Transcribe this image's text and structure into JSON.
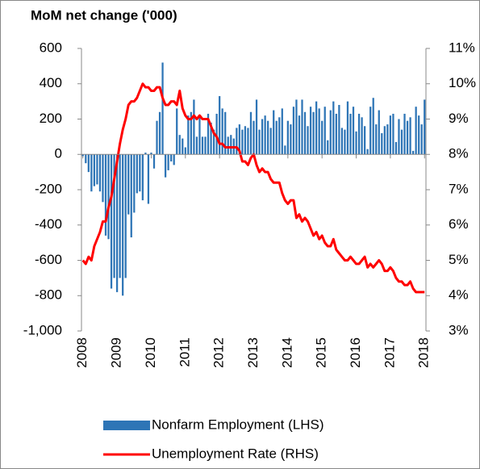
{
  "chart_data": {
    "type": "bar",
    "title": "MoM net change ('000)",
    "categories": [
      "2008",
      null,
      null,
      null,
      null,
      null,
      null,
      null,
      null,
      null,
      null,
      null,
      "2009",
      null,
      null,
      null,
      null,
      null,
      null,
      null,
      null,
      null,
      null,
      null,
      "2010",
      null,
      null,
      null,
      null,
      null,
      null,
      null,
      null,
      null,
      null,
      null,
      "2011",
      null,
      null,
      null,
      null,
      null,
      null,
      null,
      null,
      null,
      null,
      null,
      "2012",
      null,
      null,
      null,
      null,
      null,
      null,
      null,
      null,
      null,
      null,
      null,
      "2013",
      null,
      null,
      null,
      null,
      null,
      null,
      null,
      null,
      null,
      null,
      null,
      "2014",
      null,
      null,
      null,
      null,
      null,
      null,
      null,
      null,
      null,
      null,
      null,
      "2015",
      null,
      null,
      null,
      null,
      null,
      null,
      null,
      null,
      null,
      null,
      null,
      "2016",
      null,
      null,
      null,
      null,
      null,
      null,
      null,
      null,
      null,
      null,
      null,
      "2017",
      null,
      null,
      null,
      null,
      null,
      null,
      null,
      null,
      null,
      null,
      null,
      "2018"
    ],
    "series": [
      {
        "name": "Nonfarm Employment (LHS)",
        "color": "#2e75b6",
        "type": "bar",
        "values": [
          -10,
          -50,
          -100,
          -210,
          -180,
          -170,
          -210,
          -270,
          -460,
          -480,
          -760,
          -700,
          -780,
          -700,
          -800,
          -700,
          -340,
          -470,
          -330,
          -220,
          -210,
          -260,
          10,
          -280,
          10,
          -80,
          190,
          240,
          520,
          -130,
          -90,
          -40,
          -60,
          260,
          110,
          90,
          40,
          220,
          240,
          310,
          100,
          210,
          100,
          100,
          230,
          180,
          140,
          230,
          330,
          260,
          240,
          100,
          110,
          90,
          150,
          170,
          140,
          160,
          150,
          240,
          190,
          310,
          140,
          200,
          220,
          190,
          150,
          250,
          190,
          210,
          260,
          50,
          190,
          170,
          270,
          310,
          220,
          310,
          240,
          160,
          270,
          240,
          300,
          260,
          190,
          270,
          80,
          250,
          300,
          230,
          280,
          150,
          140,
          300,
          230,
          270,
          130,
          230,
          210,
          160,
          30,
          270,
          320,
          170,
          250,
          120,
          160,
          170,
          220,
          230,
          70,
          200,
          140,
          230,
          190,
          210,
          20,
          270,
          220,
          170,
          310
        ]
      },
      {
        "name": "Unemployment Rate (RHS)",
        "color": "#ff0000",
        "type": "line",
        "axis": "y2",
        "values": [
          5.0,
          4.9,
          5.1,
          5.0,
          5.4,
          5.6,
          5.8,
          6.1,
          6.1,
          6.5,
          6.8,
          7.3,
          7.8,
          8.3,
          8.7,
          9.0,
          9.4,
          9.5,
          9.5,
          9.6,
          9.8,
          10.0,
          9.9,
          9.9,
          9.8,
          9.8,
          9.9,
          9.9,
          9.6,
          9.4,
          9.4,
          9.5,
          9.5,
          9.4,
          9.8,
          9.3,
          9.1,
          9.0,
          9.0,
          9.1,
          9.0,
          9.1,
          9.0,
          9.0,
          9.0,
          8.8,
          8.6,
          8.5,
          8.3,
          8.3,
          8.2,
          8.2,
          8.2,
          8.2,
          8.2,
          8.1,
          7.8,
          7.8,
          7.7,
          7.9,
          8.0,
          7.7,
          7.5,
          7.6,
          7.5,
          7.5,
          7.3,
          7.2,
          7.2,
          7.2,
          6.9,
          6.7,
          6.6,
          6.7,
          6.7,
          6.2,
          6.3,
          6.1,
          6.2,
          6.1,
          5.9,
          5.7,
          5.8,
          5.6,
          5.7,
          5.5,
          5.4,
          5.4,
          5.6,
          5.3,
          5.2,
          5.1,
          5.0,
          5.0,
          5.1,
          5.0,
          4.9,
          4.9,
          5.0,
          5.1,
          4.8,
          4.9,
          4.8,
          4.9,
          5.0,
          4.9,
          4.7,
          4.7,
          4.8,
          4.7,
          4.5,
          4.4,
          4.4,
          4.3,
          4.3,
          4.4,
          4.2,
          4.1,
          4.1,
          4.1,
          4.1
        ]
      }
    ],
    "ylim": [
      -1000,
      600
    ],
    "yticks": [
      {
        "value": -1000,
        "label": "-1,000"
      },
      -800,
      -600,
      -400,
      -200,
      0,
      200,
      400,
      600
    ],
    "y2lim": [
      3,
      11
    ],
    "y2ticks": [
      {
        "value": 3,
        "label": "3%"
      },
      {
        "value": 4,
        "label": "4%"
      },
      {
        "value": 5,
        "label": "5%"
      },
      {
        "value": 6,
        "label": "6%"
      },
      {
        "value": 7,
        "label": "7%"
      },
      {
        "value": 8,
        "label": "8%"
      },
      {
        "value": 9,
        "label": "9%"
      },
      {
        "value": 10,
        "label": "10%"
      },
      {
        "value": 11,
        "label": "11%"
      }
    ],
    "grid": false,
    "legend": "bottom"
  }
}
